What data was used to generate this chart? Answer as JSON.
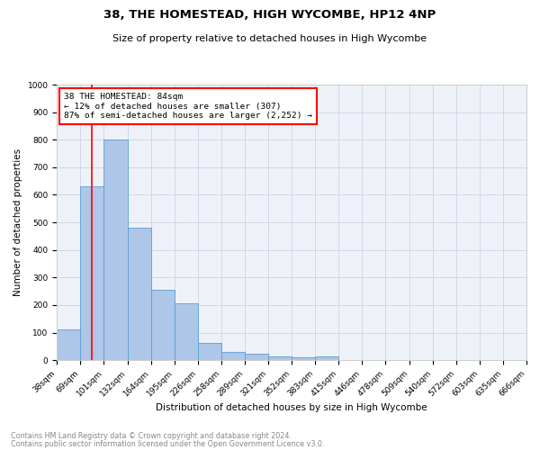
{
  "title": "38, THE HOMESTEAD, HIGH WYCOMBE, HP12 4NP",
  "subtitle": "Size of property relative to detached houses in High Wycombe",
  "xlabel": "Distribution of detached houses by size in High Wycombe",
  "ylabel": "Number of detached properties",
  "footnote1": "Contains HM Land Registry data © Crown copyright and database right 2024.",
  "footnote2": "Contains public sector information licensed under the Open Government Licence v3.0.",
  "bin_labels": [
    "38sqm",
    "69sqm",
    "101sqm",
    "132sqm",
    "164sqm",
    "195sqm",
    "226sqm",
    "258sqm",
    "289sqm",
    "321sqm",
    "352sqm",
    "383sqm",
    "415sqm",
    "446sqm",
    "478sqm",
    "509sqm",
    "540sqm",
    "572sqm",
    "603sqm",
    "635sqm",
    "666sqm"
  ],
  "bar_values": [
    110,
    630,
    800,
    480,
    255,
    205,
    63,
    30,
    22,
    15,
    10,
    13,
    0,
    0,
    0,
    0,
    0,
    0,
    0,
    0
  ],
  "bar_color": "#aec6e8",
  "bar_edge_color": "#5a9fd4",
  "grid_color": "#d0d8e8",
  "background_color": "#eef2f8",
  "ylim": [
    0,
    1000
  ],
  "yticks": [
    0,
    100,
    200,
    300,
    400,
    500,
    600,
    700,
    800,
    900,
    1000
  ],
  "property_label": "38 THE HOMESTEAD: 84sqm",
  "annotation_line1": "← 12% of detached houses are smaller (307)",
  "annotation_line2": "87% of semi-detached houses are larger (2,252) →",
  "title_fontsize": 9.5,
  "subtitle_fontsize": 8,
  "axis_label_fontsize": 7.5,
  "tick_fontsize": 6.5,
  "annotation_fontsize": 6.8,
  "footnote_fontsize": 5.8
}
